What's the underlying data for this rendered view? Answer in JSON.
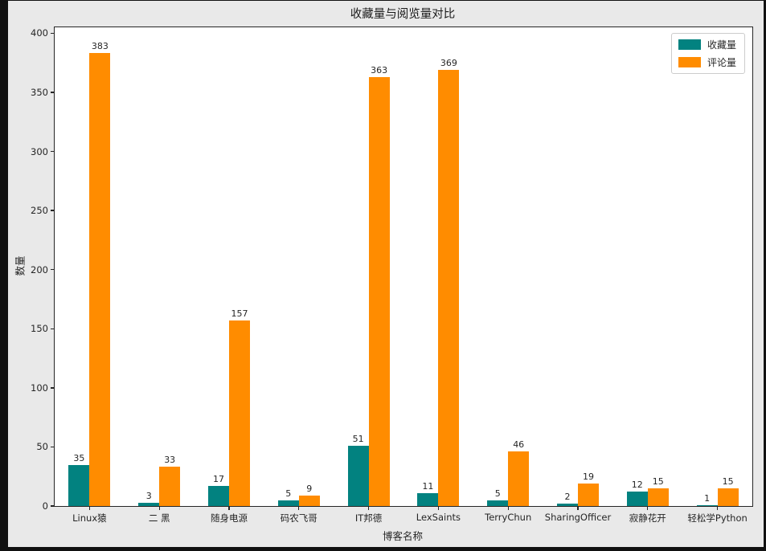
{
  "chart_data": {
    "type": "bar",
    "title": "收藏量与阅览量对比",
    "xlabel": "博客名称",
    "ylabel": "数量",
    "categories": [
      "Linux猿",
      "二 黑",
      "随身电源",
      "码农飞哥",
      "IT邦德",
      "LexSaints",
      "TerryChun",
      "SharingOfficer",
      "寂静花开",
      "轻松学Python"
    ],
    "series": [
      {
        "name": "收藏量",
        "color": "#028280",
        "values": [
          35,
          3,
          17,
          5,
          51,
          11,
          5,
          2,
          12,
          1
        ]
      },
      {
        "name": "评论量",
        "color": "#ff8c00",
        "values": [
          383,
          33,
          157,
          9,
          363,
          369,
          46,
          19,
          15,
          15
        ]
      }
    ],
    "yticks": [
      0,
      50,
      100,
      150,
      200,
      250,
      300,
      350,
      400
    ],
    "ylim": [
      0,
      405
    ],
    "grid": "off",
    "legend_position": "upper right",
    "plot_background": "#ffffff",
    "figure_background": "#e9e9e9",
    "frame_color": "#111111",
    "axis_color": "#262626"
  }
}
